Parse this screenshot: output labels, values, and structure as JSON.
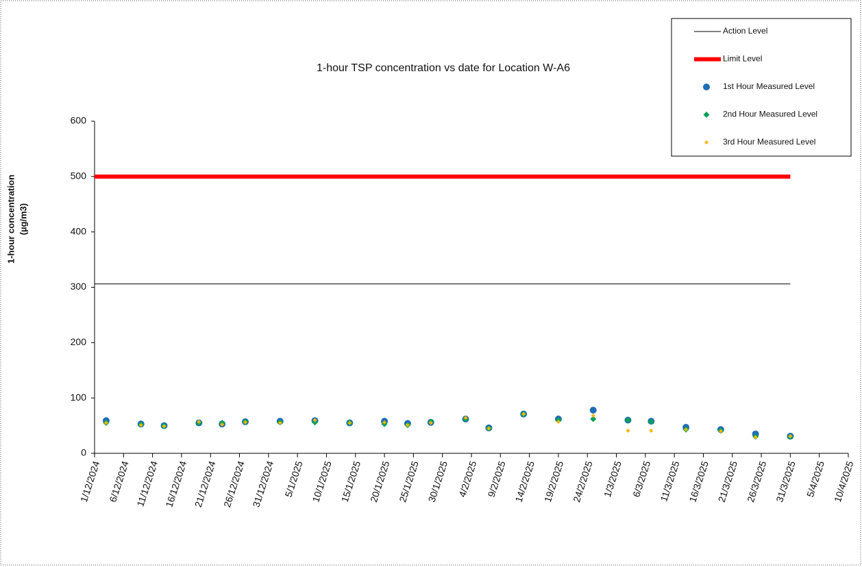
{
  "chart_data": {
    "type": "scatter",
    "title": "1-hour TSP concentration vs date for Location  W-A6",
    "y_label": [
      "1-hour concentration",
      "(µg/m3)"
    ],
    "xlim": [
      "1/12/2024",
      "10/4/2025"
    ],
    "xticks": [
      "1/12/2024",
      "6/12/2024",
      "11/12/2024",
      "16/12/2024",
      "21/12/2024",
      "26/12/2024",
      "31/12/2024",
      "5/1/2025",
      "10/1/2025",
      "15/1/2025",
      "20/1/2025",
      "25/1/2025",
      "30/1/2025",
      "4/2/2025",
      "9/2/2025",
      "14/2/2025",
      "19/2/2025",
      "24/2/2025",
      "1/3/2025",
      "6/3/2025",
      "11/3/2025",
      "16/3/2025",
      "21/3/2025",
      "26/3/2025",
      "31/3/2025",
      "5/4/2025",
      "10/4/2025"
    ],
    "ylim": [
      0,
      600
    ],
    "yticks": [
      0,
      100,
      200,
      300,
      400,
      500,
      600
    ],
    "x": [
      "3/12/2024",
      "9/12/2024",
      "13/12/2024",
      "19/12/2024",
      "23/12/2024",
      "27/12/2024",
      "2/1/2025",
      "8/1/2025",
      "14/1/2025",
      "20/1/2025",
      "24/1/2025",
      "28/1/2025",
      "3/2/2025",
      "7/2/2025",
      "13/2/2025",
      "19/2/2025",
      "25/2/2025",
      "3/3/2025",
      "7/3/2025",
      "13/3/2025",
      "19/3/2025",
      "25/3/2025",
      "31/3/2025"
    ],
    "series": [
      {
        "name": "Action Level",
        "type": "line",
        "color": "#000000",
        "width": 1,
        "x": [
          "1/12/2024",
          "31/3/2025"
        ],
        "values": [
          306,
          306
        ]
      },
      {
        "name": "Limit Level",
        "type": "line",
        "color": "#ff0000",
        "width": 6,
        "x": [
          "1/12/2024",
          "31/3/2025"
        ],
        "values": [
          500,
          500
        ]
      },
      {
        "name": "1st Hour Measured Level",
        "type": "scatter",
        "marker": "circle",
        "color": "#1f6fb5",
        "values": [
          59,
          53,
          50,
          55,
          53,
          57,
          58,
          59,
          55,
          58,
          54,
          56,
          62,
          46,
          71,
          62,
          78,
          60,
          58,
          47,
          43,
          35,
          31
        ]
      },
      {
        "name": "2nd Hour Measured Level",
        "type": "scatter",
        "marker": "diamond",
        "color": "#0aa05a",
        "values": [
          55,
          52,
          49,
          55,
          55,
          57,
          56,
          56,
          55,
          53,
          51,
          57,
          62,
          45,
          71,
          60,
          62,
          60,
          57,
          43,
          41,
          30,
          30
        ]
      },
      {
        "name": "3rd Hour Measured Level",
        "type": "scatter",
        "marker": "small-diamond",
        "color": "#f5b800",
        "values": [
          55,
          51,
          49,
          57,
          52,
          56,
          55,
          60,
          55,
          56,
          51,
          55,
          64,
          45,
          71,
          57,
          68,
          41,
          41,
          43,
          40,
          29,
          31
        ]
      }
    ]
  }
}
